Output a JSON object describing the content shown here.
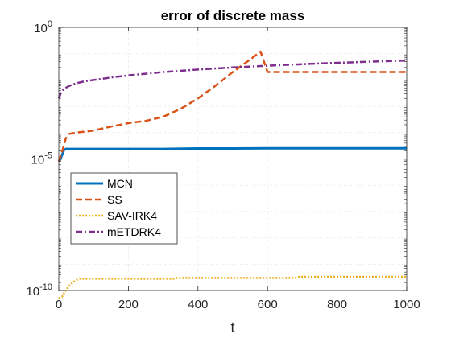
{
  "chart_data": {
    "type": "line",
    "title": "error of discrete mass",
    "xlabel": "t",
    "ylabel": "",
    "xlim": [
      0,
      1000
    ],
    "ylim": [
      1e-10,
      1
    ],
    "yscale": "log",
    "xticks": [
      0,
      200,
      400,
      600,
      800,
      1000
    ],
    "yticks": [
      {
        "base": "10",
        "exp": "0",
        "value": 1
      },
      {
        "base": "10",
        "exp": "-5",
        "value": 1e-05
      },
      {
        "base": "10",
        "exp": "-10",
        "value": 1e-10
      }
    ],
    "grid": true,
    "legend_position": "lower-left",
    "series": [
      {
        "name": "MCN",
        "color": "#0072BD",
        "style": "solid",
        "width": 3,
        "x": [
          0,
          5,
          10,
          15,
          20,
          50,
          100,
          200,
          300,
          400,
          500,
          600,
          700,
          800,
          900,
          1000
        ],
        "y": [
          8e-06,
          1e-05,
          1.5e-05,
          2.2e-05,
          2.4e-05,
          2.4e-05,
          2.4e-05,
          2.4e-05,
          2.4e-05,
          2.5e-05,
          2.5e-05,
          2.55e-05,
          2.55e-05,
          2.55e-05,
          2.55e-05,
          2.55e-05
        ]
      },
      {
        "name": "SS",
        "color": "#D95319",
        "style": "dashed",
        "width": 2.5,
        "x": [
          0,
          10,
          20,
          30,
          50,
          100,
          150,
          200,
          250,
          300,
          350,
          400,
          450,
          500,
          550,
          580,
          600,
          700,
          800,
          900,
          1000
        ],
        "y": [
          8e-06,
          2e-05,
          6e-05,
          9e-05,
          0.0001,
          0.00012,
          0.00017,
          0.00023,
          0.00028,
          0.0004,
          0.0008,
          0.002,
          0.006,
          0.02,
          0.06,
          0.12,
          0.02,
          0.02,
          0.02,
          0.02,
          0.02
        ]
      },
      {
        "name": "SAV-IRK4",
        "color": "#EDB120",
        "style": "dotted",
        "width": 2.5,
        "x": [
          0,
          10,
          20,
          30,
          40,
          50,
          60,
          100,
          200,
          300,
          330,
          340,
          400,
          500,
          600,
          680,
          690,
          800,
          900,
          1000
        ],
        "y": [
          5e-11,
          6e-11,
          1e-10,
          1.5e-10,
          2e-10,
          2.5e-10,
          2.8e-10,
          2.8e-10,
          2.8e-10,
          2.8e-10,
          2.8e-10,
          3e-10,
          3e-10,
          3e-10,
          3e-10,
          3e-10,
          3.3e-10,
          3.3e-10,
          3.3e-10,
          3.3e-10
        ]
      },
      {
        "name": "mETDRK4",
        "color": "#7E2F8E",
        "style": "dashdot",
        "width": 2.5,
        "x": [
          0,
          5,
          10,
          20,
          30,
          50,
          75,
          100,
          150,
          200,
          300,
          400,
          500,
          600,
          700,
          800,
          900,
          1000
        ],
        "y": [
          0.002,
          0.003,
          0.004,
          0.005,
          0.006,
          0.0075,
          0.009,
          0.01,
          0.0125,
          0.015,
          0.02,
          0.025,
          0.03,
          0.035,
          0.04,
          0.045,
          0.05,
          0.055
        ]
      }
    ]
  }
}
